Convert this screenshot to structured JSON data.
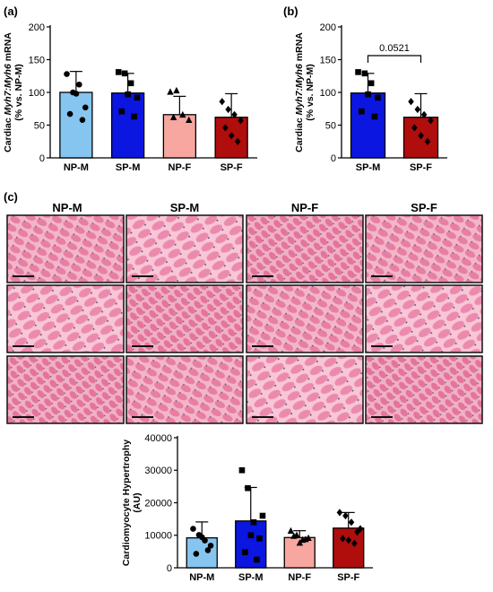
{
  "panel_labels": {
    "a": "(a)",
    "b": "(b)",
    "c": "(c)"
  },
  "colors": {
    "NP-M": "#86c5f0",
    "SP-M": "#0b16e0",
    "NP-F": "#f7a6a0",
    "SP-F": "#b00d0d"
  },
  "micrographs": {
    "column_headers": [
      "NP-M",
      "SP-M",
      "NP-F",
      "SP-F"
    ],
    "rows": 3,
    "stain": "H&E",
    "has_scale_bars": true
  },
  "chart_data": [
    {
      "id": "a",
      "type": "bar",
      "categories": [
        "NP-M",
        "SP-M",
        "NP-F",
        "SP-F"
      ],
      "values": [
        100,
        99,
        66,
        62
      ],
      "error_upper": [
        132,
        129,
        94,
        98
      ],
      "points": [
        [
          128,
          100,
          112,
          77,
          67,
          98,
          58
        ],
        [
          131,
          129,
          114,
          92,
          71,
          97,
          63
        ],
        [
          101,
          103,
          66,
          58,
          62
        ],
        [
          86,
          74,
          66,
          57,
          46,
          34,
          25
        ]
      ],
      "markers": [
        "circle",
        "square",
        "triangle",
        "diamond"
      ],
      "ylabel_parts": [
        "Cardiac ",
        "Myh7:Myh6",
        " mRNA"
      ],
      "ylabel_line2": "(% vs. NP-M)",
      "yticks": [
        0,
        50,
        100,
        150,
        200
      ],
      "ylim": [
        0,
        200
      ]
    },
    {
      "id": "b",
      "type": "bar",
      "categories": [
        "SP-M",
        "SP-F"
      ],
      "values": [
        99,
        62
      ],
      "error_upper": [
        129,
        98
      ],
      "points": [
        [
          131,
          129,
          114,
          92,
          71,
          97,
          63
        ],
        [
          86,
          74,
          66,
          57,
          46,
          34,
          25
        ]
      ],
      "markers": [
        "square",
        "diamond"
      ],
      "ylabel_parts": [
        "Cardiac ",
        "Myh7:Myh6",
        " mRNA"
      ],
      "ylabel_line2": "(% vs. NP-M)",
      "yticks": [
        0,
        50,
        100,
        150,
        200
      ],
      "ylim": [
        0,
        200
      ],
      "annotation": "0.0521"
    },
    {
      "id": "c",
      "type": "bar",
      "categories": [
        "NP-M",
        "SP-M",
        "NP-F",
        "SP-F"
      ],
      "values": [
        9200,
        14400,
        9300,
        12200
      ],
      "error_upper": [
        14100,
        24700,
        11400,
        17000
      ],
      "points": [
        [
          12000,
          10100,
          8400,
          6800,
          4300,
          9400,
          5400
        ],
        [
          30000,
          24500,
          14000,
          9000,
          4800,
          10000,
          2500,
          16000
        ],
        [
          11400,
          10100,
          8600,
          9200,
          9800,
          7700,
          8800
        ],
        [
          17000,
          16000,
          14000,
          11000,
          9000,
          8500,
          7500,
          12000
        ]
      ],
      "markers": [
        "circle",
        "square",
        "triangle",
        "diamond"
      ],
      "ylabel_parts": [
        "Cardiomyocyte Hypertrophy"
      ],
      "ylabel_line2": "(AU)",
      "yticks": [
        0,
        10000,
        20000,
        30000,
        40000
      ],
      "ylim": [
        0,
        40000
      ]
    }
  ]
}
